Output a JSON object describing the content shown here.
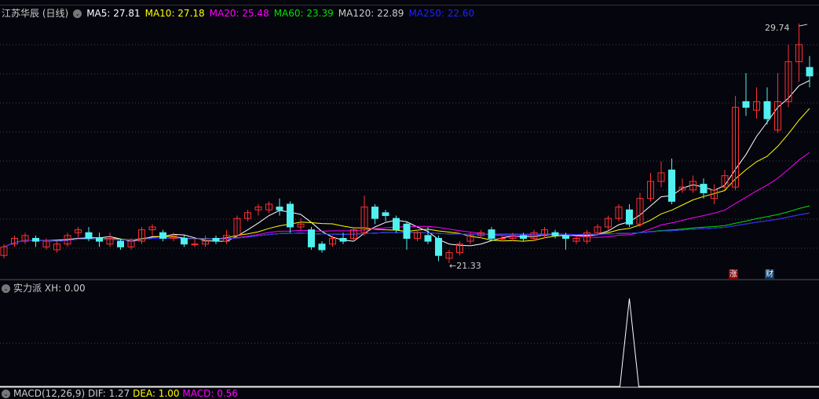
{
  "title": "江苏华辰 (日线)",
  "ma_legend": [
    {
      "label": "MA5: 27.81",
      "color": "#ffffff"
    },
    {
      "label": "MA10: 27.18",
      "color": "#ffff00"
    },
    {
      "label": "MA20: 25.48",
      "color": "#ff00ff"
    },
    {
      "label": "MA60: 23.39",
      "color": "#00e000"
    },
    {
      "label": "MA120: 22.89",
      "color": "#cccccc"
    },
    {
      "label": "MA250: 22.60",
      "color": "#2020ff"
    }
  ],
  "high_label": "29.74",
  "low_label": "←21.33",
  "badges": {
    "zhang": "涨",
    "cai": "财"
  },
  "indicator": {
    "name": "实力派",
    "value": "XH: 0.00"
  },
  "macd": {
    "name": "MACD(12,26,9)",
    "dif": "DIF: 1.27",
    "dea": "DEA: 1.00",
    "macd": "MACD: 0.56"
  },
  "colors": {
    "up": "#ff3030",
    "down": "#50f0f0",
    "bg": "#05050d"
  },
  "chart_data": {
    "type": "candlestick",
    "ohlc": [
      [
        21.6,
        21.9,
        22.0,
        21.5
      ],
      [
        22.0,
        22.2,
        22.3,
        21.9
      ],
      [
        22.1,
        22.3,
        22.4,
        22.0
      ],
      [
        22.2,
        22.1,
        22.3,
        21.9
      ],
      [
        21.9,
        22.1,
        22.2,
        21.8
      ],
      [
        21.8,
        22.0,
        22.1,
        21.7
      ],
      [
        22.0,
        22.3,
        22.4,
        21.9
      ],
      [
        22.4,
        22.5,
        22.6,
        22.2
      ],
      [
        22.4,
        22.2,
        22.6,
        22.1
      ],
      [
        22.2,
        22.1,
        22.4,
        21.9
      ],
      [
        22.0,
        22.2,
        22.4,
        21.9
      ],
      [
        22.1,
        21.9,
        22.2,
        21.8
      ],
      [
        21.9,
        22.1,
        22.2,
        21.8
      ],
      [
        22.1,
        22.5,
        22.6,
        22.0
      ],
      [
        22.5,
        22.6,
        22.7,
        22.3
      ],
      [
        22.4,
        22.2,
        22.5,
        22.1
      ],
      [
        22.2,
        22.3,
        22.4,
        22.1
      ],
      [
        22.2,
        22.0,
        22.3,
        21.9
      ],
      [
        22.0,
        22.0,
        22.2,
        21.9
      ],
      [
        22.0,
        22.1,
        22.3,
        21.9
      ],
      [
        22.2,
        22.1,
        22.3,
        22.0
      ],
      [
        22.1,
        22.3,
        22.5,
        22.0
      ],
      [
        22.3,
        22.9,
        23.0,
        22.2
      ],
      [
        22.9,
        23.1,
        23.2,
        22.8
      ],
      [
        23.2,
        23.3,
        23.4,
        23.0
      ],
      [
        23.2,
        23.4,
        23.5,
        23.1
      ],
      [
        23.3,
        23.2,
        23.6,
        23.0
      ],
      [
        23.4,
        22.6,
        23.5,
        22.4
      ],
      [
        22.6,
        22.7,
        22.9,
        22.5
      ],
      [
        22.5,
        21.9,
        22.6,
        21.8
      ],
      [
        22.0,
        21.8,
        22.1,
        21.7
      ],
      [
        22.0,
        22.2,
        22.3,
        21.9
      ],
      [
        22.2,
        22.1,
        22.4,
        22.0
      ],
      [
        22.2,
        22.5,
        22.6,
        22.1
      ],
      [
        22.4,
        23.3,
        23.7,
        22.3
      ],
      [
        23.3,
        22.9,
        23.4,
        22.7
      ],
      [
        23.1,
        23.0,
        23.2,
        22.8
      ],
      [
        22.9,
        22.5,
        23.0,
        22.4
      ],
      [
        22.7,
        22.2,
        22.8,
        21.8
      ],
      [
        22.2,
        22.4,
        22.5,
        22.1
      ],
      [
        22.3,
        22.1,
        22.6,
        22.0
      ],
      [
        22.2,
        21.6,
        22.3,
        21.4
      ],
      [
        21.5,
        21.7,
        21.8,
        21.33
      ],
      [
        21.7,
        22.0,
        22.1,
        21.6
      ],
      [
        22.1,
        22.3,
        22.4,
        22.0
      ],
      [
        22.3,
        22.4,
        22.5,
        22.2
      ],
      [
        22.5,
        22.2,
        22.6,
        22.1
      ],
      [
        22.2,
        22.2,
        22.3,
        22.1
      ],
      [
        22.2,
        22.3,
        22.4,
        22.1
      ],
      [
        22.3,
        22.2,
        22.4,
        22.1
      ],
      [
        22.2,
        22.4,
        22.5,
        22.1
      ],
      [
        22.3,
        22.5,
        22.6,
        22.2
      ],
      [
        22.4,
        22.3,
        22.5,
        22.2
      ],
      [
        22.3,
        22.2,
        22.4,
        21.8
      ],
      [
        22.1,
        22.2,
        22.3,
        22.0
      ],
      [
        22.1,
        22.4,
        22.5,
        22.0
      ],
      [
        22.4,
        22.6,
        22.7,
        22.3
      ],
      [
        22.6,
        22.9,
        23.0,
        22.5
      ],
      [
        22.9,
        23.3,
        23.4,
        22.8
      ],
      [
        23.2,
        22.7,
        23.4,
        22.6
      ],
      [
        22.7,
        23.6,
        23.8,
        22.6
      ],
      [
        23.6,
        24.2,
        24.5,
        23.5
      ],
      [
        24.2,
        24.5,
        24.9,
        24.0
      ],
      [
        24.6,
        23.5,
        25.0,
        23.4
      ],
      [
        23.9,
        24.0,
        24.3,
        23.8
      ],
      [
        23.9,
        24.2,
        24.4,
        23.8
      ],
      [
        24.1,
        23.8,
        24.3,
        23.6
      ],
      [
        23.6,
        23.9,
        24.1,
        23.4
      ],
      [
        24.0,
        24.4,
        24.6,
        23.9
      ],
      [
        24.0,
        26.8,
        27.2,
        23.9
      ],
      [
        27.0,
        26.8,
        28.0,
        26.5
      ],
      [
        26.7,
        27.0,
        27.5,
        26.4
      ],
      [
        27.0,
        26.4,
        27.5,
        26.2
      ],
      [
        26.0,
        27.0,
        28.0,
        25.9
      ],
      [
        27.0,
        28.4,
        29.0,
        26.8
      ],
      [
        28.4,
        29.0,
        29.74,
        27.7
      ],
      [
        28.2,
        27.9,
        28.6,
        27.5
      ]
    ],
    "xh_spike_index": 59,
    "price_high": 29.74,
    "price_low": 21.33
  }
}
